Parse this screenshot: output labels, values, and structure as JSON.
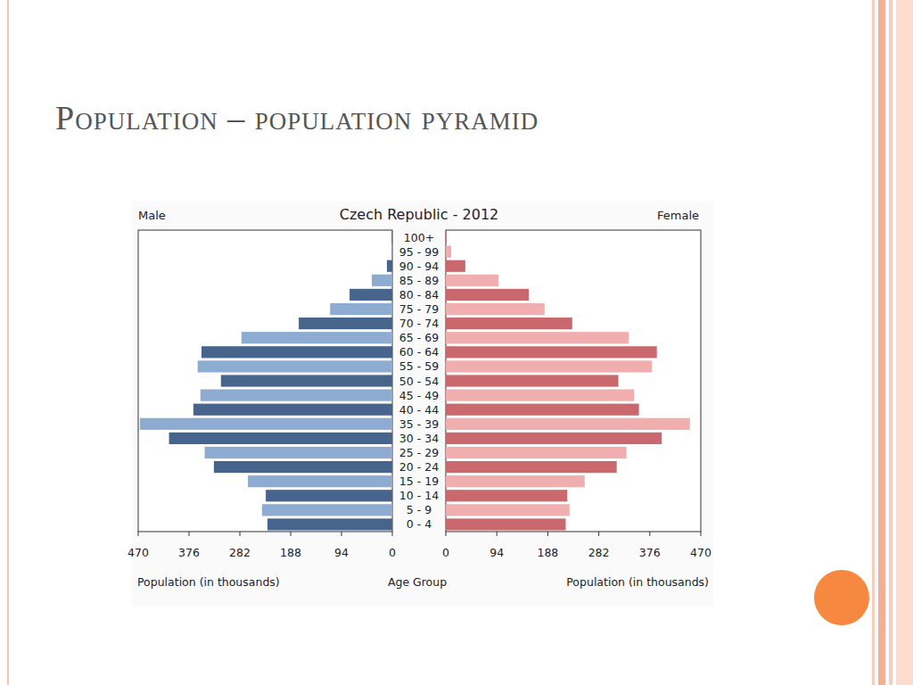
{
  "slide": {
    "title": "Population – population pyramid"
  },
  "chart_data": {
    "type": "bar",
    "orientation": "horizontal",
    "title": "Czech Republic - 2012",
    "xlabel": "Population (in thousands)",
    "ylabel": "Age Group",
    "categories": [
      "0 - 4",
      "5 - 9",
      "10 - 14",
      "15 - 19",
      "20 - 24",
      "25 - 29",
      "30 - 34",
      "35 - 39",
      "40 - 44",
      "45 - 49",
      "50 - 54",
      "55 - 59",
      "60 - 64",
      "65 - 69",
      "70 - 74",
      "75 - 79",
      "80 - 84",
      "85 - 89",
      "90 - 94",
      "95 - 99",
      "100+"
    ],
    "xlim": [
      0,
      470
    ],
    "xticks": [
      0,
      94,
      188,
      282,
      376,
      470
    ],
    "series": [
      {
        "name": "Male",
        "colors": [
          "#46648c",
          "#8eabd1",
          "#46648c",
          "#8eabd1",
          "#46648c",
          "#8eabd1",
          "#46648c",
          "#8eabd1",
          "#46648c",
          "#8eabd1",
          "#46648c",
          "#8eabd1",
          "#46648c",
          "#8eabd1",
          "#46648c",
          "#8eabd1",
          "#46648c",
          "#8eabd1",
          "#46648c",
          "#8eabd1",
          "#46648c"
        ],
        "values": [
          231,
          241,
          234,
          267,
          330,
          347,
          413,
          467,
          368,
          355,
          317,
          360,
          353,
          279,
          173,
          115,
          79,
          38,
          10,
          2,
          1
        ]
      },
      {
        "name": "Female",
        "colors": [
          "#c9696d",
          "#f1aeae",
          "#c9696d",
          "#f1aeae",
          "#c9696d",
          "#f1aeae",
          "#c9696d",
          "#f1aeae",
          "#c9696d",
          "#f1aeae",
          "#c9696d",
          "#f1aeae",
          "#c9696d",
          "#f1aeae",
          "#c9696d",
          "#f1aeae",
          "#c9696d",
          "#f1aeae",
          "#c9696d",
          "#f1aeae",
          "#c9696d"
        ],
        "values": [
          221,
          228,
          224,
          256,
          315,
          333,
          398,
          450,
          356,
          347,
          318,
          380,
          389,
          337,
          233,
          182,
          153,
          97,
          36,
          10,
          1
        ]
      }
    ]
  }
}
